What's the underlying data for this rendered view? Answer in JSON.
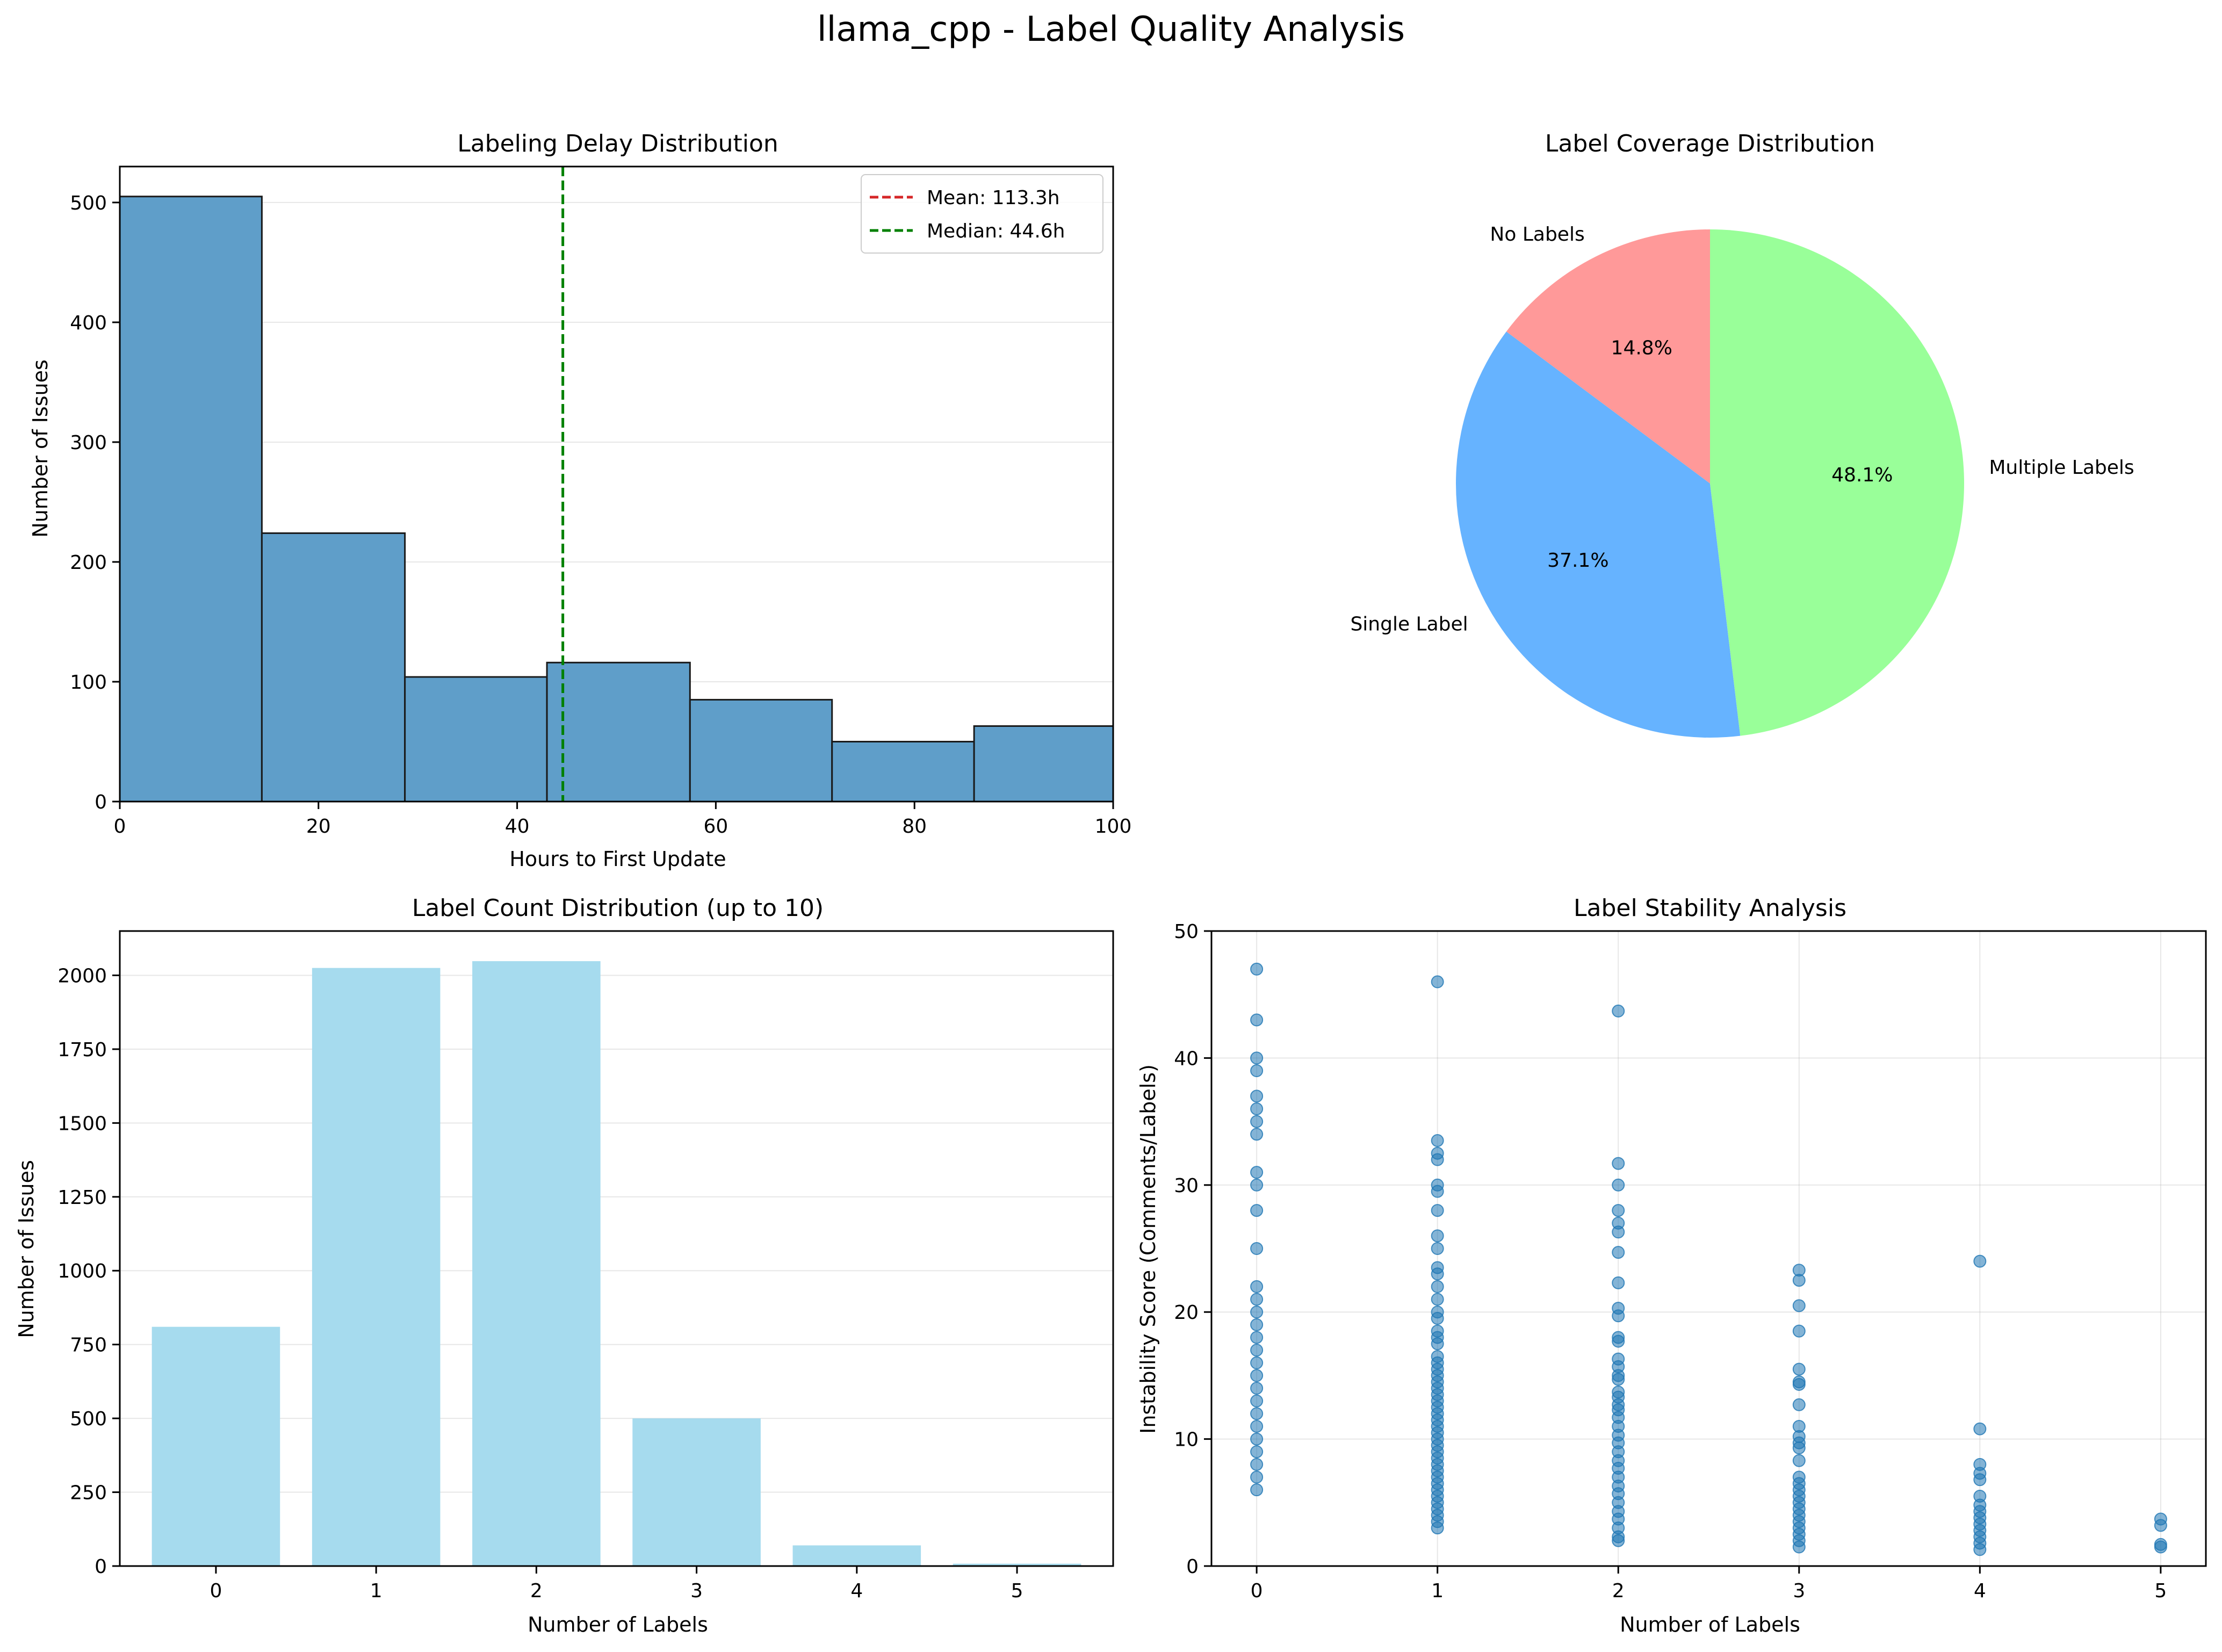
{
  "figure": {
    "title": "llama_cpp - Label Quality Analysis"
  },
  "chart_data": [
    {
      "id": "delay",
      "type": "bar",
      "subtype": "histogram",
      "title": "Labeling Delay Distribution",
      "xlabel": "Hours to First Update",
      "ylabel": "Number of Issues",
      "xlim": [
        0,
        100
      ],
      "ylim": [
        0,
        530
      ],
      "xticks": [
        0,
        20,
        40,
        60,
        80,
        100
      ],
      "yticks": [
        0,
        100,
        200,
        300,
        400,
        500
      ],
      "bins": [
        {
          "x0": 0,
          "x1": 14.3,
          "value": 505
        },
        {
          "x0": 14.3,
          "x1": 28.7,
          "value": 224
        },
        {
          "x0": 28.7,
          "x1": 43.0,
          "value": 104
        },
        {
          "x0": 43.0,
          "x1": 57.4,
          "value": 116
        },
        {
          "x0": 57.4,
          "x1": 71.7,
          "value": 85
        },
        {
          "x0": 71.7,
          "x1": 86.0,
          "value": 50
        },
        {
          "x0": 86.0,
          "x1": 100.4,
          "value": 63
        }
      ],
      "lines": [
        {
          "label": "Mean: 113.3h",
          "x": 113.3,
          "color": "#d62728"
        },
        {
          "label": "Median: 44.6h",
          "x": 44.6,
          "color": "#008000"
        }
      ],
      "bar_color": "#5f9ec9",
      "grid": "y",
      "legend": "top-right"
    },
    {
      "id": "coverage",
      "type": "pie",
      "title": "Label Coverage Distribution",
      "slices": [
        {
          "label": "No Labels",
          "value": 14.8,
          "pct": "14.8%",
          "color": "#ff9999"
        },
        {
          "label": "Single Label",
          "value": 37.1,
          "pct": "37.1%",
          "color": "#66b3ff"
        },
        {
          "label": "Multiple Labels",
          "value": 48.1,
          "pct": "48.1%",
          "color": "#99ff99"
        }
      ]
    },
    {
      "id": "count",
      "type": "bar",
      "title": "Label Count Distribution (up to 10)",
      "xlabel": "Number of Labels",
      "ylabel": "Number of Issues",
      "categories": [
        "0",
        "1",
        "2",
        "3",
        "4",
        "5"
      ],
      "values": [
        810,
        2025,
        2048,
        500,
        70,
        8
      ],
      "ylim": [
        0,
        2150
      ],
      "yticks": [
        0,
        250,
        500,
        750,
        1000,
        1250,
        1500,
        1750,
        2000
      ],
      "bar_color": "#a6dbee",
      "grid": "y"
    },
    {
      "id": "stability",
      "type": "scatter",
      "title": "Label Stability Analysis",
      "xlabel": "Number of Labels",
      "ylabel": "Instability Score (Comments/Labels)",
      "xlim": [
        -0.25,
        5.25
      ],
      "ylim": [
        0,
        50
      ],
      "xticks": [
        0,
        1,
        2,
        3,
        4,
        5
      ],
      "yticks": [
        0,
        10,
        20,
        30,
        40,
        50
      ],
      "color": "#1f77b4",
      "grid": "both",
      "series": [
        {
          "x": 0,
          "y": [
            47,
            43,
            40,
            39,
            37,
            36,
            35,
            34,
            31,
            30,
            28,
            25,
            22,
            21,
            20,
            19,
            18,
            17,
            16,
            15,
            14,
            13,
            12,
            11,
            10,
            9,
            8,
            7,
            6
          ]
        },
        {
          "x": 1,
          "y": [
            46,
            33.5,
            32.5,
            32,
            30,
            29.5,
            28,
            26,
            25,
            23.5,
            23,
            22,
            21,
            20,
            19.5,
            18.5,
            18,
            17.5,
            16.5,
            16,
            15.5,
            15,
            14.5,
            14,
            13.5,
            13,
            12.5,
            12,
            11.5,
            11,
            10.5,
            10,
            9.5,
            9,
            8.5,
            8,
            7.5,
            7,
            6.5,
            6,
            5.5,
            5,
            4.5,
            4,
            3.5,
            3
          ]
        },
        {
          "x": 2,
          "y": [
            43.7,
            31.7,
            30,
            28,
            27,
            26.3,
            24.7,
            22.3,
            20.3,
            19.7,
            18,
            17.7,
            16.3,
            15.7,
            15,
            14.7,
            13.7,
            13.3,
            12.7,
            12.3,
            11.7,
            11,
            10.3,
            9.7,
            9,
            8.3,
            7.7,
            7,
            6.3,
            5.7,
            5,
            4.3,
            3.7,
            3,
            2.3,
            2
          ]
        },
        {
          "x": 3,
          "y": [
            23.3,
            22.5,
            20.5,
            18.5,
            15.5,
            14.5,
            14.3,
            12.7,
            11,
            10.2,
            9.7,
            9.3,
            8.3,
            7,
            6.5,
            6,
            5.5,
            5,
            4.5,
            4,
            3.5,
            3,
            2.5,
            2,
            1.5
          ]
        },
        {
          "x": 4,
          "y": [
            24,
            10.8,
            8,
            7.3,
            6.8,
            5.5,
            4.8,
            4.3,
            3.8,
            3.3,
            2.8,
            2.3,
            1.8,
            1.3
          ]
        },
        {
          "x": 5,
          "y": [
            3.7,
            3.2,
            1.7,
            1.5
          ]
        }
      ]
    }
  ]
}
